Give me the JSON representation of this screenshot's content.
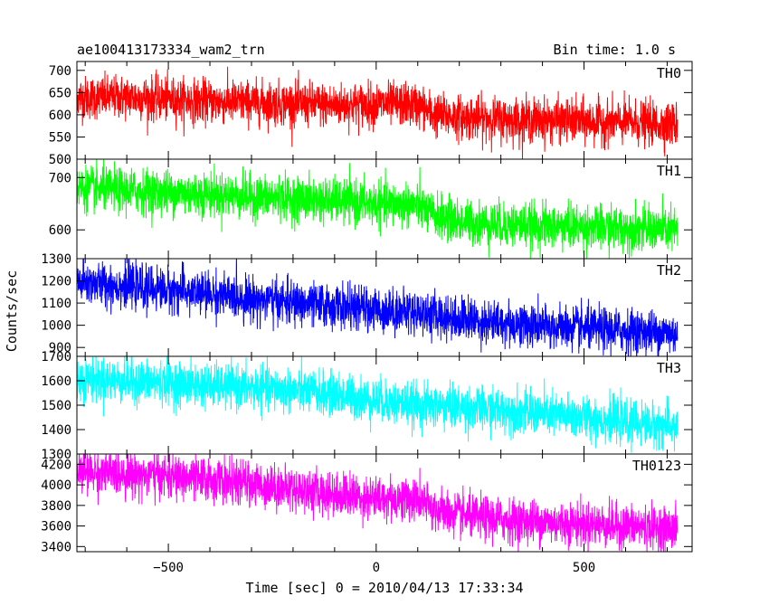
{
  "chart_data": {
    "type": "line",
    "title": "ae100413173334_wam2_trn",
    "subtitle": "Bin time: 1.0 s",
    "xlabel": "Time [sec] 0 = 2010/04/13 17:33:34",
    "ylabel": "Counts/sec",
    "xlim": [
      -720,
      760
    ],
    "xticks": [
      -500,
      0,
      500
    ],
    "bin_time_s": 1.0,
    "grid": false,
    "panels": [
      {
        "name": "TH0",
        "color": "#ff0000",
        "ylim": [
          500,
          720
        ],
        "yticks": [
          500,
          550,
          600,
          650,
          700
        ],
        "x": [
          -720,
          -600,
          -500,
          -400,
          -300,
          -200,
          -100,
          0,
          100,
          140,
          200,
          300,
          400,
          500,
          600,
          720
        ],
        "y": [
          638,
          640,
          635,
          630,
          628,
          625,
          622,
          624,
          622,
          600,
          595,
          590,
          588,
          585,
          583,
          578
        ]
      },
      {
        "name": "TH1",
        "color": "#00ff00",
        "ylim": [
          545,
          735
        ],
        "yticks": [
          600,
          700
        ],
        "x": [
          -720,
          -600,
          -500,
          -400,
          -300,
          -200,
          -100,
          0,
          100,
          130,
          200,
          300,
          400,
          500,
          600,
          720
        ],
        "y": [
          680,
          675,
          672,
          668,
          663,
          660,
          655,
          650,
          648,
          630,
          615,
          610,
          608,
          605,
          603,
          600
        ]
      },
      {
        "name": "TH2",
        "color": "#0000ff",
        "ylim": [
          860,
          1300
        ],
        "yticks": [
          900,
          1000,
          1100,
          1200,
          1300
        ],
        "x": [
          -720,
          -600,
          -500,
          -400,
          -300,
          -200,
          -100,
          0,
          100,
          200,
          300,
          400,
          500,
          600,
          720
        ],
        "y": [
          1195,
          1175,
          1160,
          1140,
          1120,
          1100,
          1085,
          1070,
          1060,
          1030,
          1010,
          995,
          985,
          975,
          965
        ]
      },
      {
        "name": "TH3",
        "color": "#00ffff",
        "ylim": [
          1300,
          1700
        ],
        "yticks": [
          1300,
          1400,
          1500,
          1600,
          1700
        ],
        "x": [
          -720,
          -600,
          -500,
          -400,
          -300,
          -200,
          -100,
          0,
          100,
          200,
          300,
          400,
          500,
          600,
          720
        ],
        "y": [
          1605,
          1600,
          1590,
          1580,
          1570,
          1560,
          1545,
          1520,
          1500,
          1490,
          1480,
          1465,
          1450,
          1430,
          1415
        ]
      },
      {
        "name": "TH0123",
        "color": "#ff00ff",
        "ylim": [
          3350,
          4300
        ],
        "yticks": [
          3400,
          3600,
          3800,
          4000,
          4200
        ],
        "x": [
          -720,
          -600,
          -500,
          -400,
          -300,
          -200,
          -100,
          0,
          100,
          140,
          200,
          300,
          400,
          500,
          600,
          720
        ],
        "y": [
          4130,
          4110,
          4080,
          4050,
          4010,
          3960,
          3910,
          3870,
          3860,
          3760,
          3700,
          3660,
          3640,
          3620,
          3600,
          3570
        ]
      }
    ]
  }
}
